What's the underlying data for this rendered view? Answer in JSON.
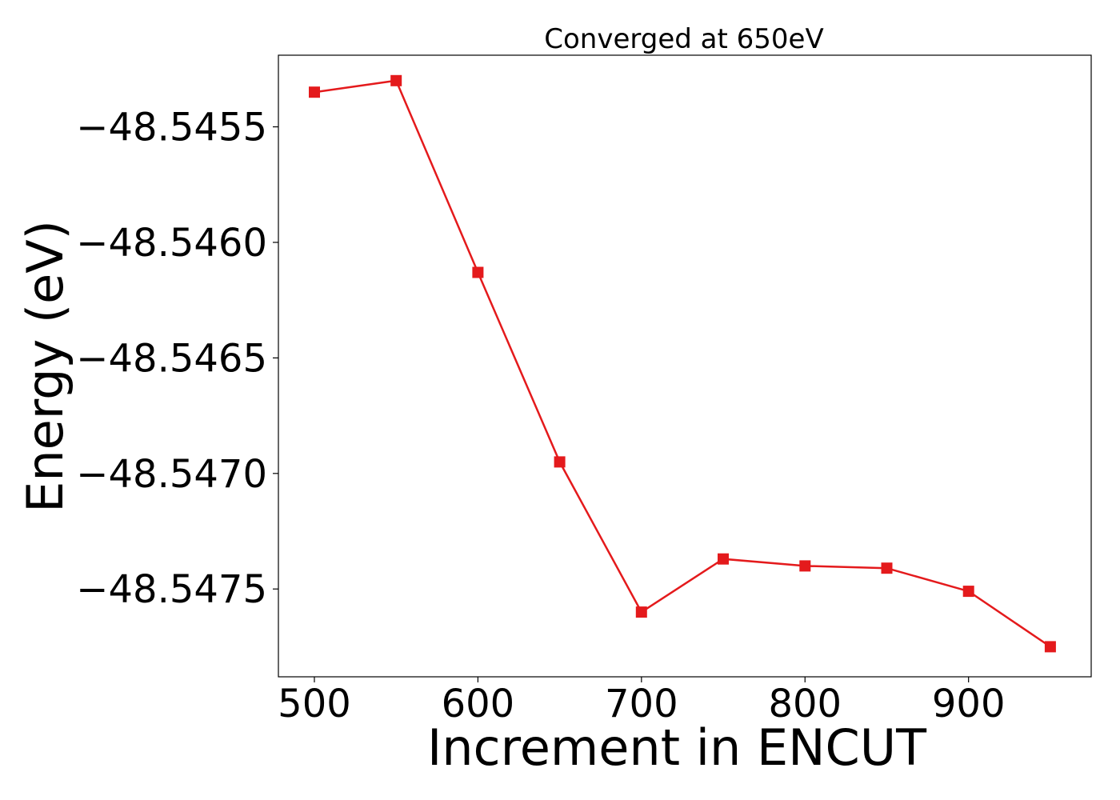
{
  "chart_data": {
    "type": "line",
    "title": "Converged at 650eV",
    "xlabel": "Increment in ENCUT",
    "ylabel": "Energy (eV)",
    "xlim": [
      478,
      975
    ],
    "ylim": [
      -48.54788,
      -48.54519
    ],
    "xticks": [
      500,
      600,
      700,
      800,
      900
    ],
    "xtick_labels": [
      "500",
      "600",
      "700",
      "800",
      "900"
    ],
    "yticks": [
      -48.5455,
      -48.546,
      -48.5465,
      -48.547,
      -48.5475
    ],
    "ytick_labels": [
      "−48.5455",
      "−48.5460",
      "−48.5465",
      "−48.5470",
      "−48.5475"
    ],
    "grid": false,
    "legend": "none",
    "series": [
      {
        "color": "#e41a1c",
        "marker": "square",
        "x": [
          500,
          550,
          600,
          650,
          700,
          750,
          800,
          850,
          900,
          950
        ],
        "y": [
          -48.54535,
          -48.5453,
          -48.54613,
          -48.54695,
          -48.5476,
          -48.54737,
          -48.5474,
          -48.54741,
          -48.54751,
          -48.54775
        ]
      }
    ]
  }
}
